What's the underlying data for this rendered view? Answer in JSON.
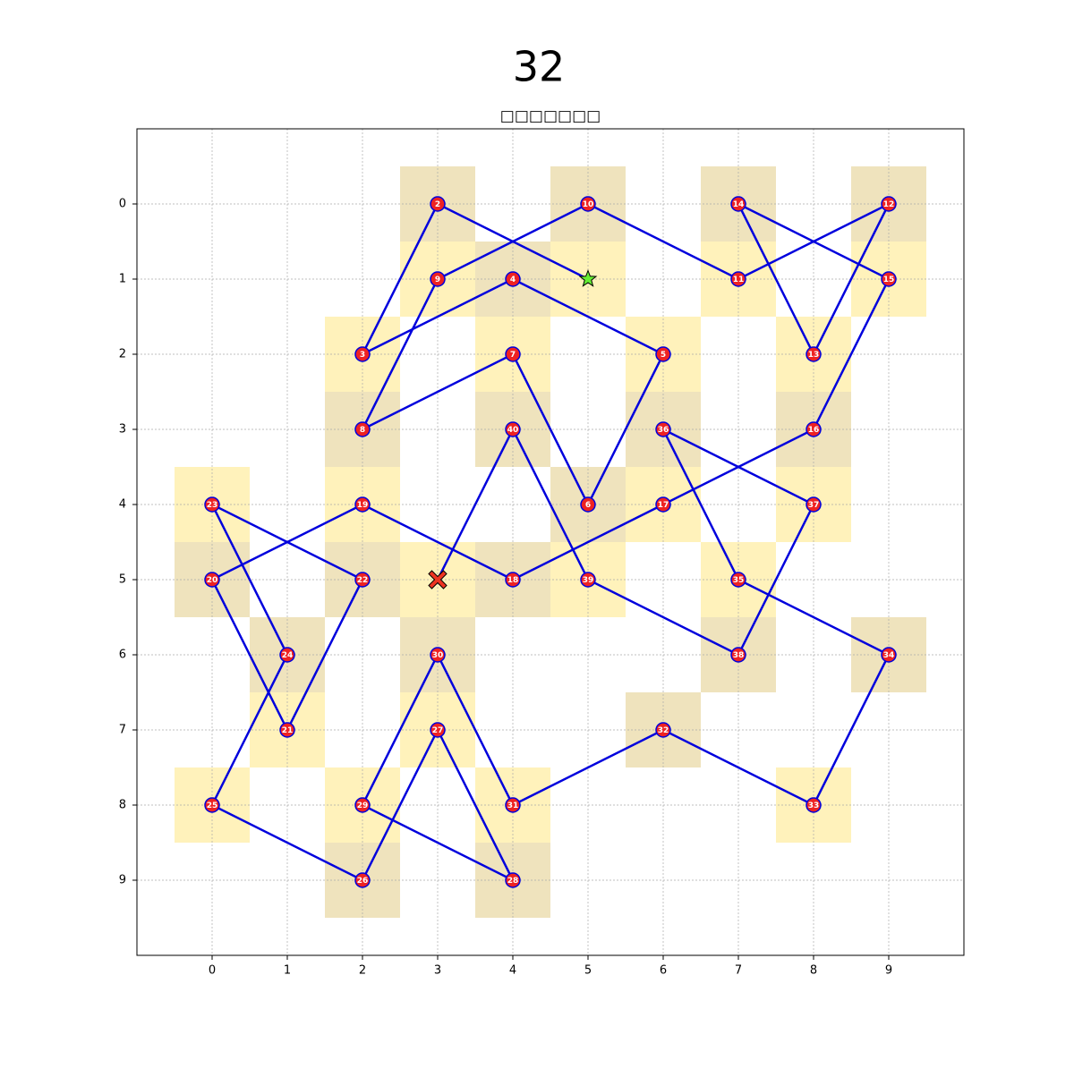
{
  "board": {
    "title": "32",
    "subtitle": "□□□□□□□",
    "xlim": [
      -1,
      10
    ],
    "ylim": [
      10,
      -1
    ],
    "xticks": [
      0,
      1,
      2,
      3,
      4,
      5,
      6,
      7,
      8,
      9
    ],
    "yticks": [
      0,
      1,
      2,
      3,
      4,
      5,
      6,
      7,
      8,
      9
    ],
    "grid": true,
    "line_color": "#0000dd",
    "node_color": "#ee2222",
    "dark_square_color": "#efe3bd",
    "light_square_color": "#fff2bb",
    "start": {
      "x": 5,
      "y": 1,
      "color": "#66ee33"
    },
    "end": {
      "x": 3,
      "y": 5,
      "color": "#ee3322"
    },
    "path": [
      {
        "label": 2,
        "x": 3,
        "y": 0
      },
      {
        "label": 3,
        "x": 2,
        "y": 2
      },
      {
        "label": 4,
        "x": 4,
        "y": 1
      },
      {
        "label": 5,
        "x": 6,
        "y": 2
      },
      {
        "label": 6,
        "x": 5,
        "y": 4
      },
      {
        "label": 7,
        "x": 4,
        "y": 2
      },
      {
        "label": 8,
        "x": 2,
        "y": 3
      },
      {
        "label": 9,
        "x": 3,
        "y": 1
      },
      {
        "label": 10,
        "x": 5,
        "y": 0
      },
      {
        "label": 11,
        "x": 7,
        "y": 1
      },
      {
        "label": 12,
        "x": 9,
        "y": 0
      },
      {
        "label": 13,
        "x": 8,
        "y": 2
      },
      {
        "label": 14,
        "x": 7,
        "y": 0
      },
      {
        "label": 15,
        "x": 9,
        "y": 1
      },
      {
        "label": 16,
        "x": 8,
        "y": 3
      },
      {
        "label": 17,
        "x": 6,
        "y": 4
      },
      {
        "label": 18,
        "x": 4,
        "y": 5
      },
      {
        "label": 19,
        "x": 2,
        "y": 4
      },
      {
        "label": 20,
        "x": 0,
        "y": 5
      },
      {
        "label": 21,
        "x": 1,
        "y": 7
      },
      {
        "label": 22,
        "x": 2,
        "y": 5
      },
      {
        "label": 23,
        "x": 0,
        "y": 4
      },
      {
        "label": 24,
        "x": 1,
        "y": 6
      },
      {
        "label": 25,
        "x": 0,
        "y": 8
      },
      {
        "label": 26,
        "x": 2,
        "y": 9
      },
      {
        "label": 27,
        "x": 3,
        "y": 7
      },
      {
        "label": 28,
        "x": 4,
        "y": 9
      },
      {
        "label": 29,
        "x": 2,
        "y": 8
      },
      {
        "label": 30,
        "x": 3,
        "y": 6
      },
      {
        "label": 31,
        "x": 4,
        "y": 8
      },
      {
        "label": 32,
        "x": 6,
        "y": 7
      },
      {
        "label": 33,
        "x": 8,
        "y": 8
      },
      {
        "label": 34,
        "x": 9,
        "y": 6
      },
      {
        "label": 35,
        "x": 7,
        "y": 5
      },
      {
        "label": 36,
        "x": 6,
        "y": 3
      },
      {
        "label": 37,
        "x": 8,
        "y": 4
      },
      {
        "label": 38,
        "x": 7,
        "y": 6
      },
      {
        "label": 39,
        "x": 5,
        "y": 5
      },
      {
        "label": 40,
        "x": 4,
        "y": 3
      }
    ]
  }
}
